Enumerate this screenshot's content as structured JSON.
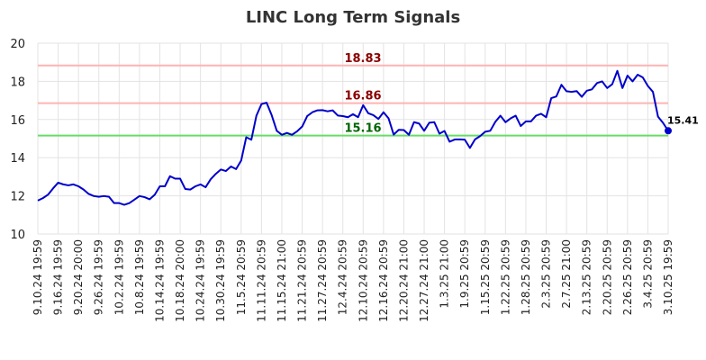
{
  "chart_data": {
    "type": "line",
    "title": "LINC Long Term Signals",
    "xlabel": "",
    "ylabel": "",
    "ylim": [
      10,
      20
    ],
    "yticks": [
      "10",
      "12",
      "14",
      "16",
      "18",
      "20"
    ],
    "grid": true,
    "x_tick_labels": [
      "9.10.24 19:59",
      "9.16.24 19:59",
      "9.20.24 20:00",
      "9.26.24 19:59",
      "10.2.24 19:59",
      "10.8.24 19:59",
      "10.14.24 19:59",
      "10.18.24 20:00",
      "10.24.24 19:59",
      "10.30.24 19:59",
      "11.5.24 20:59",
      "11.11.24 20:59",
      "11.15.24 21:00",
      "11.21.24 20:59",
      "11.27.24 20:59",
      "12.4.24 20:59",
      "12.10.24 20:59",
      "12.16.24 20:59",
      "12.20.24 21:00",
      "12.27.24 21:00",
      "1.3.25 21:00",
      "1.9.25 20:59",
      "1.15.25 20:59",
      "1.22.25 20:59",
      "1.28.25 20:59",
      "2.3.25 20:59",
      "2.7.25 21:00",
      "2.13.25 20:59",
      "2.20.25 20:59",
      "2.26.25 20:59",
      "3.4.25 20:59",
      "3.10.25 19:59"
    ],
    "series": [
      {
        "color": "#0000cc",
        "values": [
          11.75,
          11.88,
          12.06,
          12.39,
          12.69,
          12.6,
          12.55,
          12.6,
          12.5,
          12.33,
          12.1,
          11.99,
          11.95,
          11.99,
          11.95,
          11.62,
          11.62,
          11.53,
          11.62,
          11.8,
          11.99,
          11.93,
          11.82,
          12.06,
          12.5,
          12.5,
          13.03,
          12.9,
          12.9,
          12.36,
          12.33,
          12.5,
          12.6,
          12.45,
          12.87,
          13.15,
          13.38,
          13.3,
          13.54,
          13.4,
          13.85,
          15.07,
          14.94,
          16.2,
          16.81,
          16.88,
          16.23,
          15.41,
          15.2,
          15.3,
          15.2,
          15.38,
          15.63,
          16.18,
          16.38,
          16.48,
          16.49,
          16.43,
          16.48,
          16.21,
          16.18,
          16.12,
          16.28,
          16.12,
          16.75,
          16.33,
          16.23,
          16.03,
          16.38,
          16.06,
          15.21,
          15.46,
          15.45,
          15.2,
          15.86,
          15.79,
          15.41,
          15.83,
          15.86,
          15.26,
          15.4,
          14.84,
          14.95,
          14.96,
          14.94,
          14.51,
          14.96,
          15.13,
          15.36,
          15.41,
          15.88,
          16.2,
          15.86,
          16.06,
          16.2,
          15.66,
          15.9,
          15.9,
          16.2,
          16.3,
          16.12,
          17.12,
          17.21,
          17.82,
          17.48,
          17.45,
          17.49,
          17.19,
          17.51,
          17.58,
          17.91,
          18.0,
          17.65,
          17.85,
          18.55,
          17.65,
          18.3,
          18.0,
          18.35,
          18.21,
          17.76,
          17.45,
          16.15,
          15.82,
          15.41
        ]
      }
    ],
    "reference_lines": [
      {
        "value": 18.83,
        "label": "18.83",
        "line_color": "#ffb3b3",
        "label_color": "#8b0000"
      },
      {
        "value": 16.86,
        "label": "16.86",
        "line_color": "#ffb3b3",
        "label_color": "#8b0000"
      },
      {
        "value": 15.16,
        "label": "15.16",
        "line_color": "#66dd66",
        "label_color": "#006400"
      }
    ],
    "last_value_label": "15.41"
  }
}
